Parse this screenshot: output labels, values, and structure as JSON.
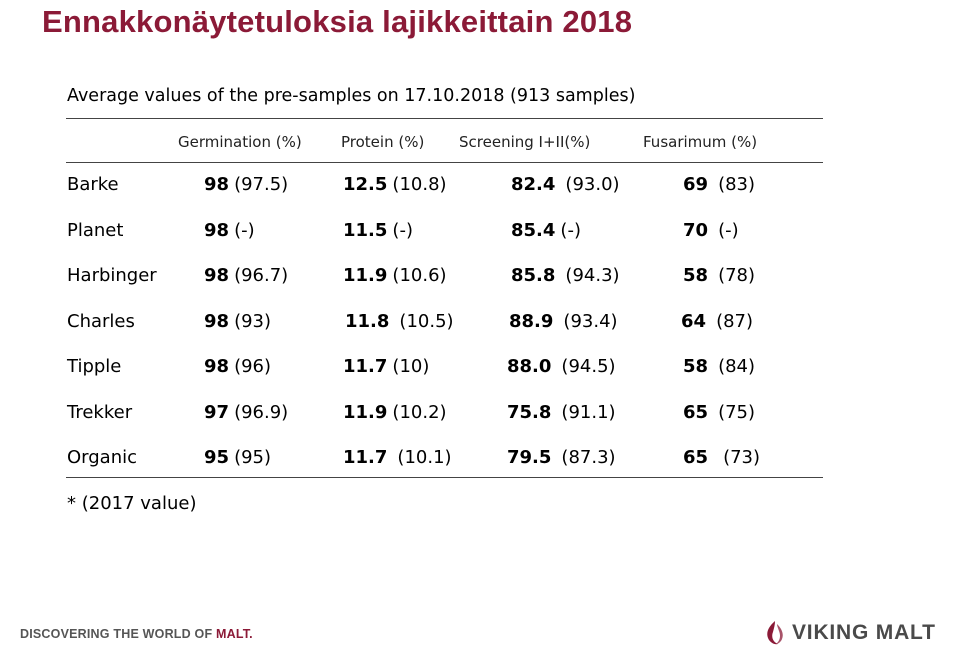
{
  "title": "Ennakkonäytetuloksia lajikkeittain 2018",
  "caption": "Average values of the pre-samples on 17.10.2018 (913 samples)",
  "headers": {
    "germination": "Germination (%)",
    "protein": "Protein (%)",
    "screening": "Screening I+II(%)",
    "fusarium": "Fusarimum (%)"
  },
  "rows": [
    {
      "variety": "Barke",
      "germination": "98",
      "germination_prev": "(97.5)",
      "protein": "12.5",
      "protein_prev": "(10.8)",
      "screening": "82.4",
      "screening_prev": "(93.0)",
      "fusarium": "69",
      "fusarium_prev": "(83)"
    },
    {
      "variety": "Planet",
      "germination": "98",
      "germination_prev": "(-)",
      "protein": "11.5",
      "protein_prev": "(-)",
      "screening": "85.4",
      "screening_prev": "(-)",
      "fusarium": "70",
      "fusarium_prev": "(-)"
    },
    {
      "variety": "Harbinger",
      "germination": "98",
      "germination_prev": "(96.7)",
      "protein": "11.9",
      "protein_prev": "(10.6)",
      "screening": "85.8",
      "screening_prev": "(94.3)",
      "fusarium": "58",
      "fusarium_prev": "(78)"
    },
    {
      "variety": "Charles",
      "germination": "98",
      "germination_prev": "(93)",
      "protein": "11.8",
      "protein_prev": "(10.5)",
      "screening": "88.9",
      "screening_prev": "(93.4)",
      "fusarium": "64",
      "fusarium_prev": "(87)"
    },
    {
      "variety": "Tipple",
      "germination": "98",
      "germination_prev": "(96)",
      "protein": "11.7",
      "protein_prev": "(10)",
      "screening": "88.0",
      "screening_prev": "(94.5)",
      "fusarium": "58",
      "fusarium_prev": "(84)"
    },
    {
      "variety": "Trekker",
      "germination": "97",
      "germination_prev": "(96.9)",
      "protein": "11.9",
      "protein_prev": "(10.2)",
      "screening": "75.8",
      "screening_prev": "(91.1)",
      "fusarium": "65",
      "fusarium_prev": "(75)"
    },
    {
      "variety": "Organic",
      "germination": "95",
      "germination_prev": "(95)",
      "protein": "11.7",
      "protein_prev": "(10.1)",
      "screening": "79.5",
      "screening_prev": "(87.3)",
      "fusarium": "65",
      "fusarium_prev": "(73)"
    }
  ],
  "footnote": "* (2017 value)",
  "tagline": {
    "main": "DISCOVERING THE WORLD OF ",
    "emphasis": "MALT."
  },
  "logo": {
    "text": "VIKING MALT",
    "icon": "barley-drop-icon"
  },
  "colors": {
    "brand": "#8b1a37",
    "tagline": "#555555",
    "logo_text": "#4a4a4a"
  }
}
